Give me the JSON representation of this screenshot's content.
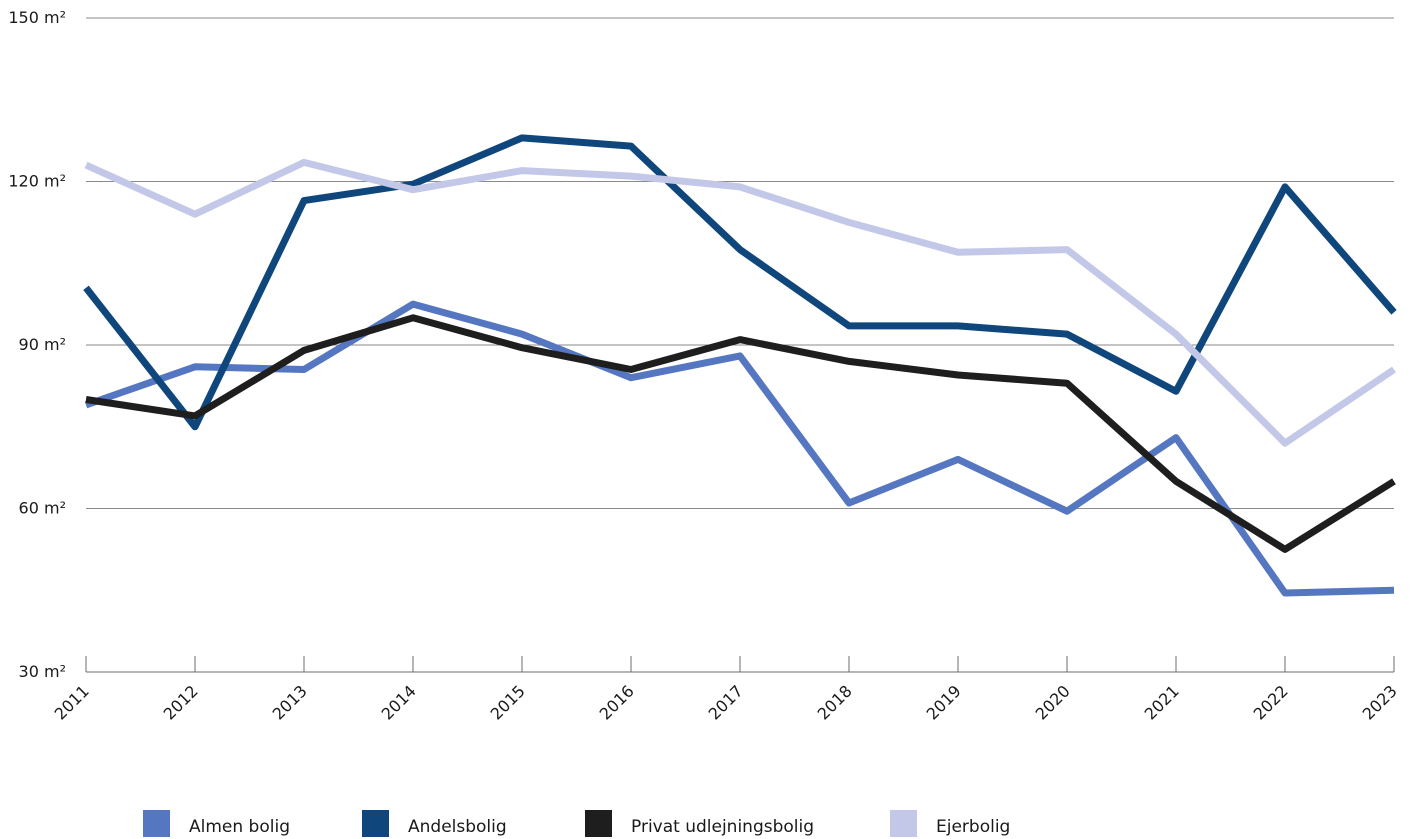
{
  "chart_data": {
    "type": "line",
    "x": [
      "2011",
      "2012",
      "2013",
      "2014",
      "2015",
      "2016",
      "2017",
      "2018",
      "2019",
      "2020",
      "2021",
      "2022",
      "2023"
    ],
    "ylim": [
      30,
      150
    ],
    "yticks": [
      {
        "value": 30,
        "label": "30 m²"
      },
      {
        "value": 60,
        "label": "60 m²"
      },
      {
        "value": 90,
        "label": "90 m²"
      },
      {
        "value": 120,
        "label": "120 m²"
      },
      {
        "value": 150,
        "label": "150 m²"
      }
    ],
    "grid": true,
    "legend_position": "bottom",
    "series": [
      {
        "name": "Almen bolig",
        "color": "#5577c1",
        "values": [
          79,
          86,
          85.5,
          97.5,
          92,
          84,
          88,
          61,
          69,
          59.5,
          73,
          44.5,
          45
        ]
      },
      {
        "name": "Andelsbolig",
        "color": "#0f467c",
        "values": [
          100.5,
          75,
          116.5,
          119.5,
          128,
          126.5,
          107.5,
          93.5,
          93.5,
          92,
          81.5,
          119,
          96
        ]
      },
      {
        "name": "Privat udlejningsbolig",
        "color": "#1e1e1e",
        "values": [
          80,
          77,
          89,
          95,
          89.5,
          85.5,
          91,
          87,
          84.5,
          83,
          65,
          52.5,
          65
        ]
      },
      {
        "name": "Ejerbolig",
        "color": "#c3c8e8",
        "values": [
          123,
          114,
          123.5,
          118.5,
          122,
          121,
          119,
          112.5,
          107,
          107.5,
          92,
          72,
          85.5
        ]
      }
    ]
  }
}
